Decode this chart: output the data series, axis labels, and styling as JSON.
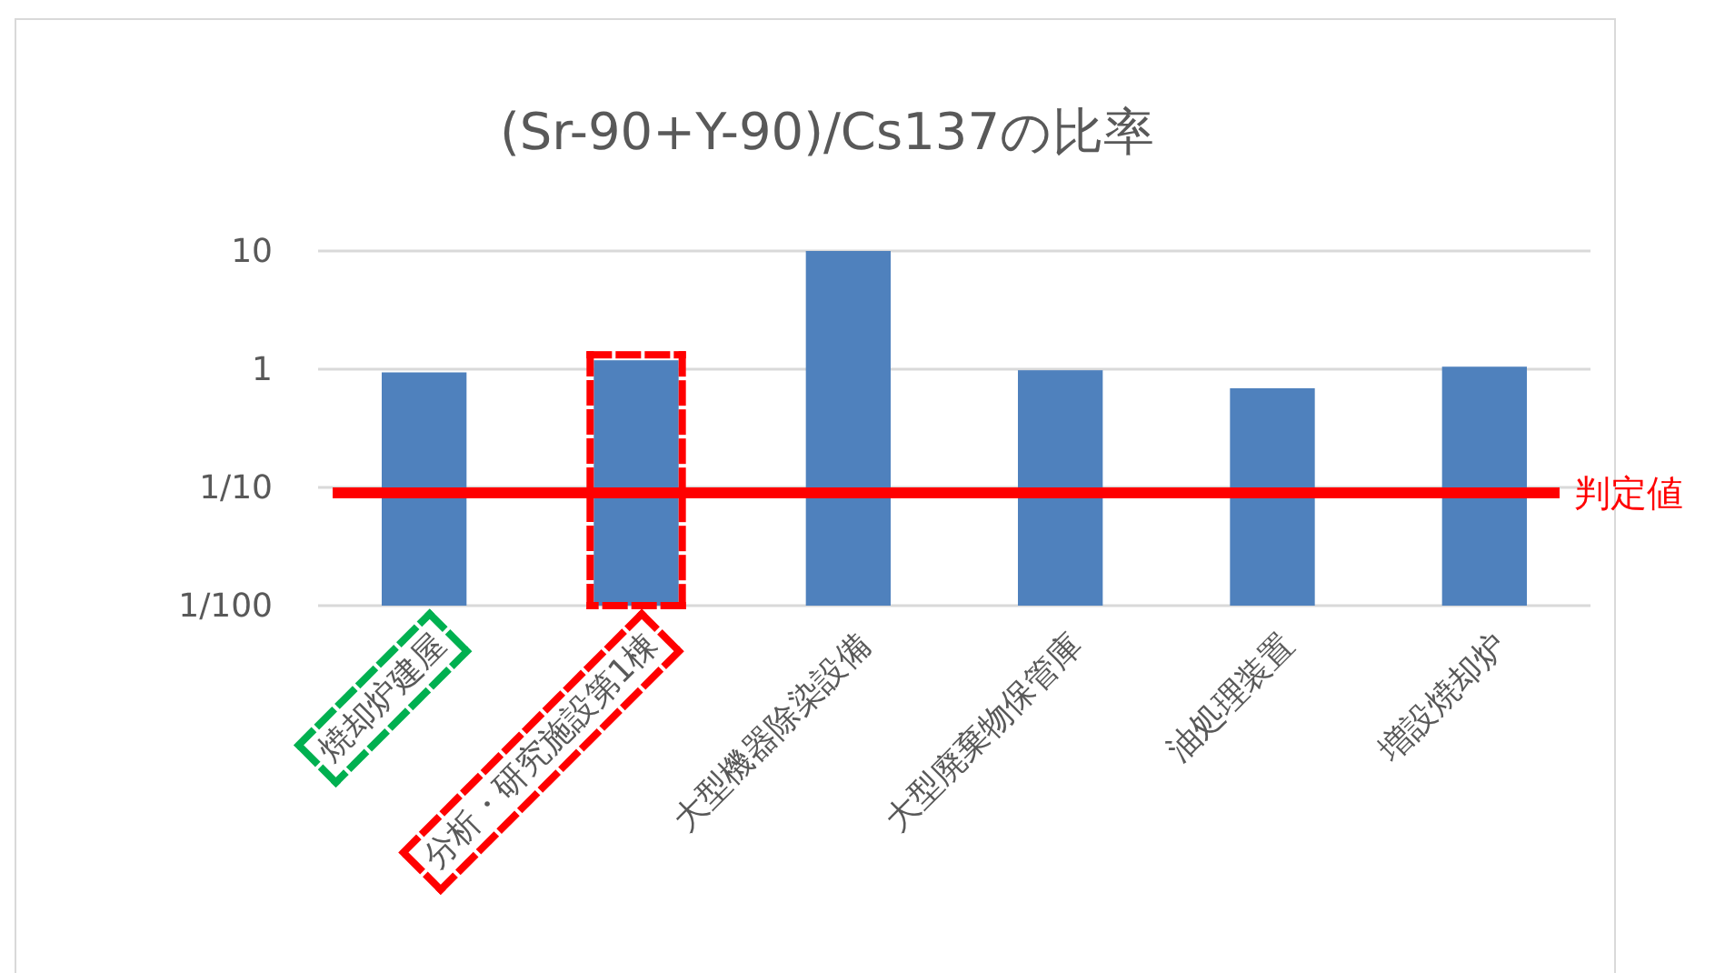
{
  "chart_data": {
    "type": "bar",
    "title": "(Sr-90+Y-90)/Cs137の比率",
    "categories": [
      "焼却炉建屋",
      "分析・研究施設第1棟",
      "大型機器除染設備",
      "大型廃棄物保管庫",
      "油処理装置",
      "増設焼却炉"
    ],
    "values": [
      0.94,
      1.19,
      10,
      0.98,
      0.69,
      1.05
    ],
    "color": "#4f81bd",
    "log": "y",
    "ylim": [
      0.01,
      10
    ],
    "yticks": [
      10,
      1,
      {
        "value": 0.1,
        "label": "1/10"
      },
      {
        "value": 0.01,
        "label": "1/100"
      }
    ],
    "grid": "y",
    "ref_lines": [
      {
        "axis": "y",
        "value": 0.09,
        "label": "判定値",
        "color": "#ff0000"
      }
    ]
  }
}
